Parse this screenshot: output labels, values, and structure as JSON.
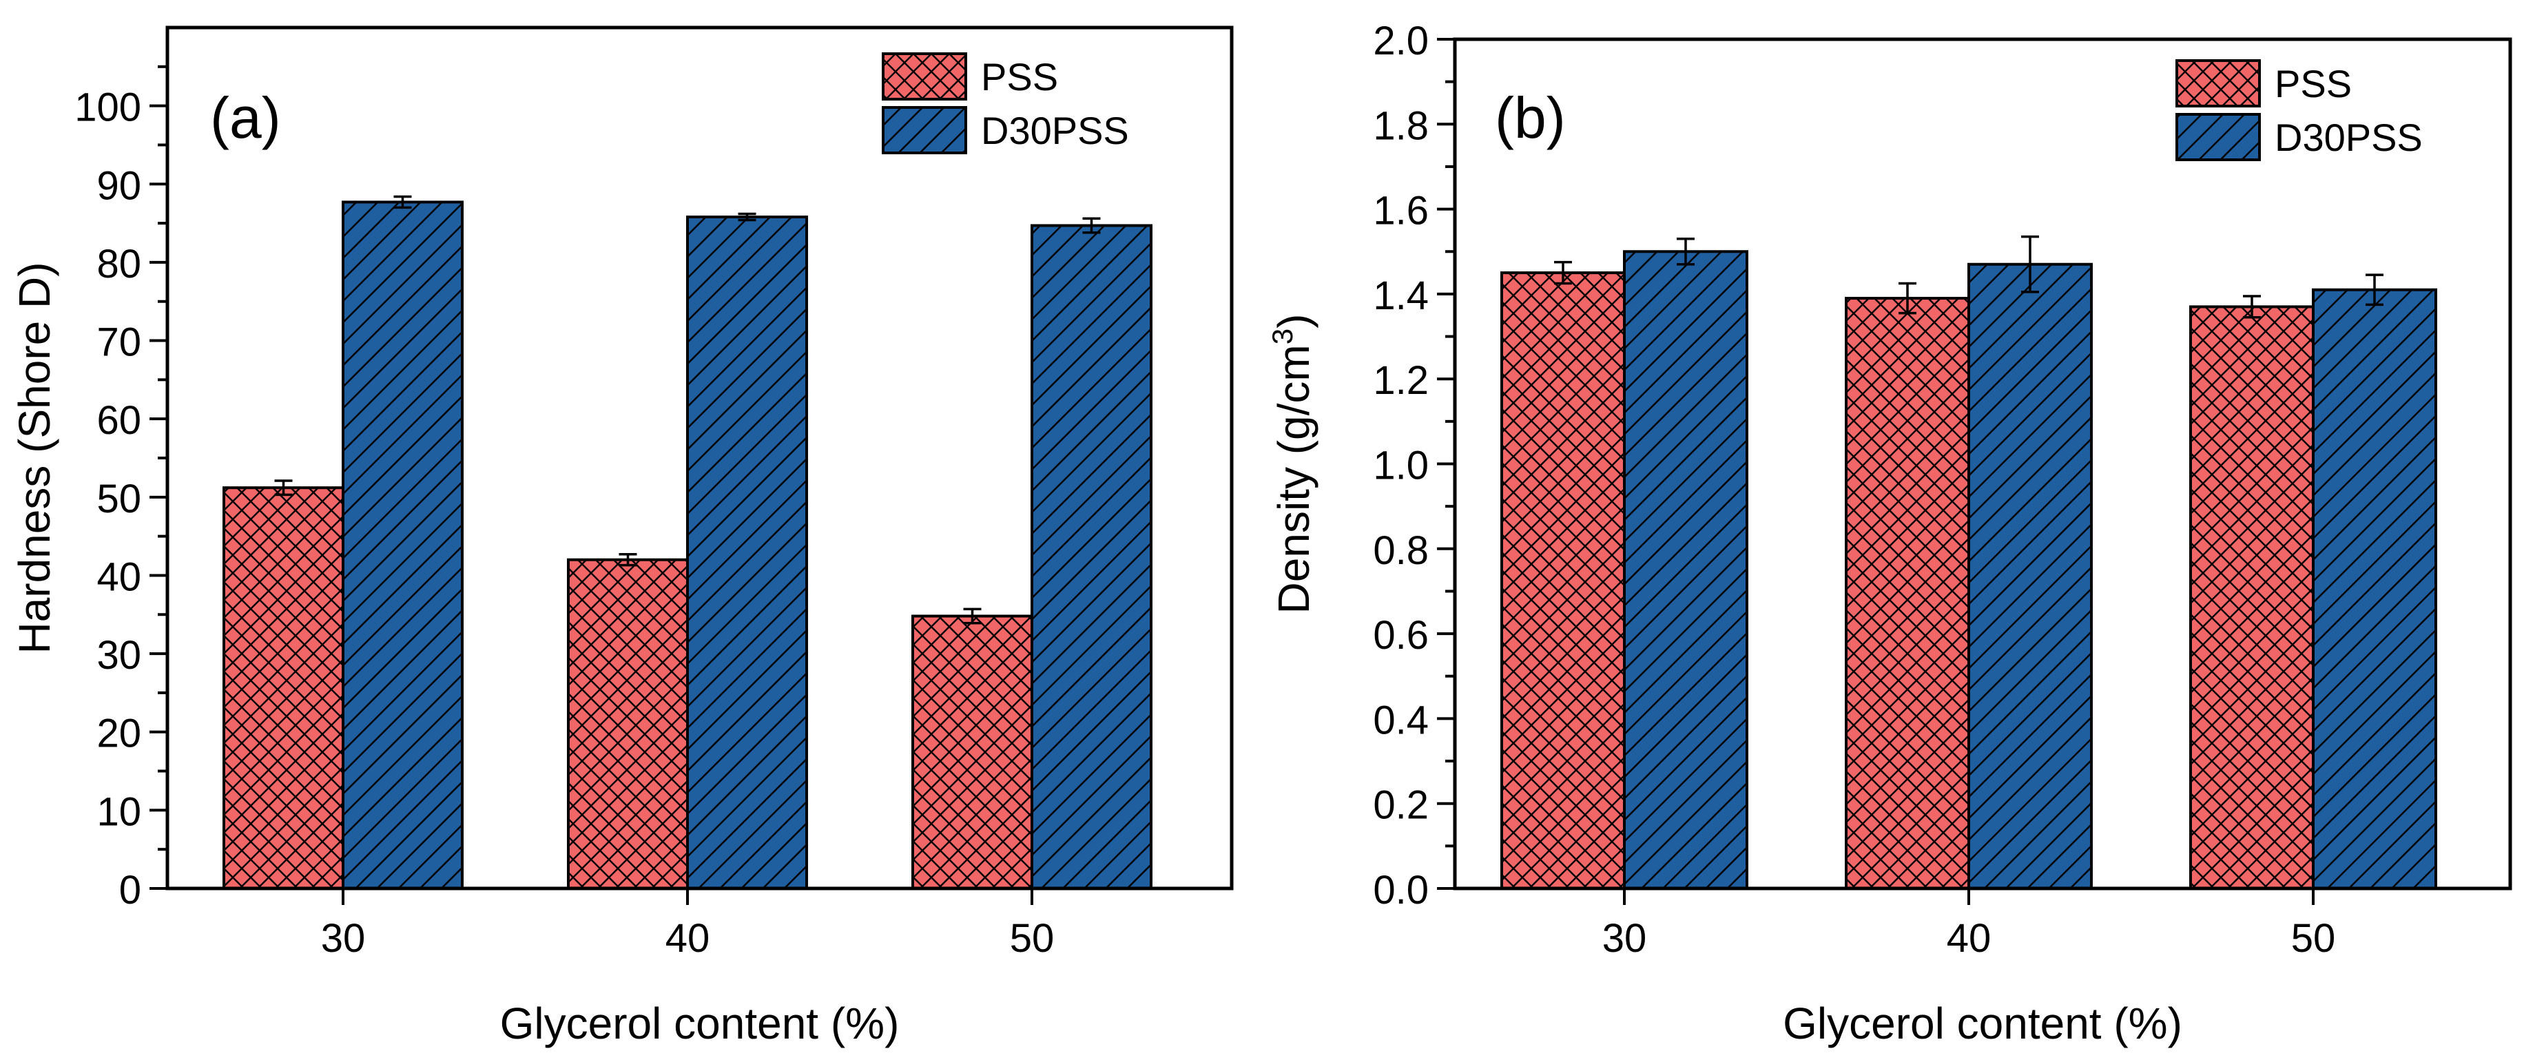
{
  "colors": {
    "pss_fill": "#F16667",
    "d30pss_fill": "#1F5F9F",
    "hatch": "#000000"
  },
  "chart_data": [
    {
      "type": "bar",
      "panel_label": "(a)",
      "title": "",
      "xlabel": "Glycerol content (%)",
      "ylabel": "Hardness (Shore D)",
      "categories": [
        "30",
        "40",
        "50"
      ],
      "ylim": [
        0,
        110
      ],
      "yticks": [
        0,
        10,
        20,
        30,
        40,
        50,
        60,
        70,
        80,
        90,
        100
      ],
      "ytick_labels": [
        "0",
        "10",
        "20",
        "30",
        "40",
        "50",
        "60",
        "70",
        "80",
        "90",
        "100"
      ],
      "legend_position": "top-right",
      "series": [
        {
          "name": "PSS",
          "values": [
            51.2,
            42.0,
            34.8
          ],
          "errors": [
            0.9,
            0.7,
            0.9
          ],
          "pattern": "crosshatch"
        },
        {
          "name": "D30PSS",
          "values": [
            87.7,
            85.8,
            84.7
          ],
          "errors": [
            0.7,
            0.4,
            0.9
          ],
          "pattern": "diagonal"
        }
      ]
    },
    {
      "type": "bar",
      "panel_label": "(b)",
      "title": "",
      "xlabel": "Glycerol content (%)",
      "ylabel_main": "Density (g/cm",
      "ylabel_sup": "3",
      "ylabel_end": ")",
      "categories": [
        "30",
        "40",
        "50"
      ],
      "ylim": [
        0,
        2.0
      ],
      "yticks": [
        0,
        0.2,
        0.4,
        0.6,
        0.8,
        1.0,
        1.2,
        1.4,
        1.6,
        1.8,
        2.0
      ],
      "ytick_labels": [
        "0.0",
        "0.2",
        "0.4",
        "0.6",
        "0.8",
        "1.0",
        "1.2",
        "1.4",
        "1.6",
        "1.8",
        "2.0"
      ],
      "legend_position": "top-right",
      "series": [
        {
          "name": "PSS",
          "values": [
            1.45,
            1.39,
            1.37
          ],
          "errors": [
            0.025,
            0.035,
            0.025
          ],
          "pattern": "crosshatch"
        },
        {
          "name": "D30PSS",
          "values": [
            1.5,
            1.47,
            1.41
          ],
          "errors": [
            0.03,
            0.065,
            0.035
          ],
          "pattern": "diagonal"
        }
      ]
    }
  ]
}
